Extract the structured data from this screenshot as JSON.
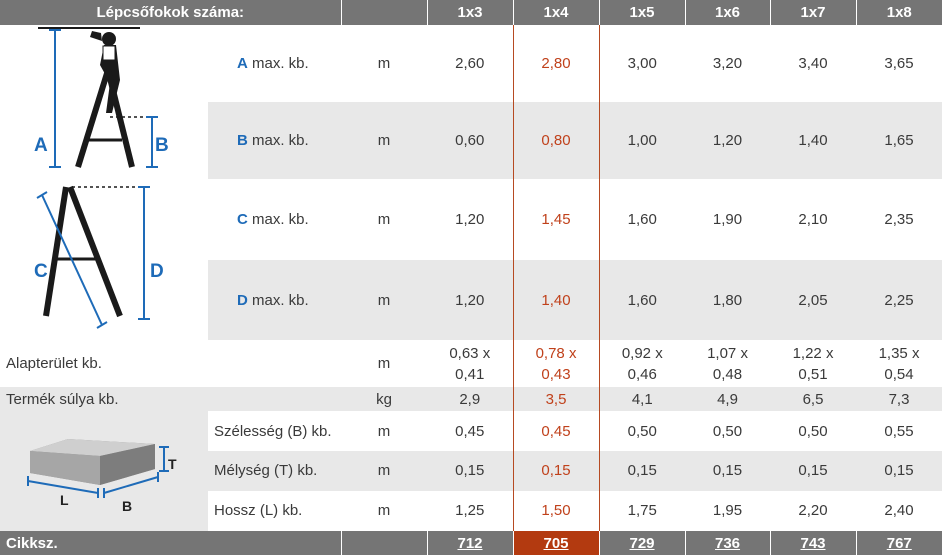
{
  "header": {
    "title": "Lépcsőfokok száma:",
    "columns": [
      "1x3",
      "1x4",
      "1x5",
      "1x6",
      "1x7",
      "1x8"
    ]
  },
  "rows": {
    "a": {
      "letter": "A",
      "label": " max. kb.",
      "unit": "m",
      "values": [
        "2,60",
        "2,80",
        "3,00",
        "3,20",
        "3,40",
        "3,65"
      ]
    },
    "b": {
      "letter": "B",
      "label": " max. kb.",
      "unit": "m",
      "values": [
        "0,60",
        "0,80",
        "1,00",
        "1,20",
        "1,40",
        "1,65"
      ]
    },
    "c": {
      "letter": "C",
      "label": " max. kb.",
      "unit": "m",
      "values": [
        "1,20",
        "1,45",
        "1,60",
        "1,90",
        "2,10",
        "2,35"
      ]
    },
    "d": {
      "letter": "D",
      "label": " max. kb.",
      "unit": "m",
      "values": [
        "1,20",
        "1,40",
        "1,60",
        "1,80",
        "2,05",
        "2,25"
      ]
    },
    "area": {
      "label": "Alapterület kb.",
      "unit": "m",
      "values": [
        [
          "0,63 x",
          "0,41"
        ],
        [
          "0,78 x",
          "0,43"
        ],
        [
          "0,92 x",
          "0,46"
        ],
        [
          "1,07 x",
          "0,48"
        ],
        [
          "1,22 x",
          "0,51"
        ],
        [
          "1,35 x",
          "0,54"
        ]
      ]
    },
    "weight": {
      "label": "Termék súlya kb.",
      "unit": "kg",
      "values": [
        "2,9",
        "3,5",
        "4,1",
        "4,9",
        "6,5",
        "7,3"
      ]
    },
    "width": {
      "label": "Szélesség (B) kb.",
      "unit": "m",
      "values": [
        "0,45",
        "0,45",
        "0,50",
        "0,50",
        "0,50",
        "0,55"
      ]
    },
    "depth": {
      "label": "Mélység (T) kb.",
      "unit": "m",
      "values": [
        "0,15",
        "0,15",
        "0,15",
        "0,15",
        "0,15",
        "0,15"
      ]
    },
    "length": {
      "label": "Hossz (L) kb.",
      "unit": "m",
      "values": [
        "1,25",
        "1,50",
        "1,75",
        "1,95",
        "2,20",
        "2,40"
      ]
    }
  },
  "footer": {
    "label": "Cikksz.",
    "codes": [
      "712",
      "705",
      "729",
      "736",
      "743",
      "767"
    ]
  },
  "diagram_labels": {
    "a": "A",
    "b": "B",
    "c": "C",
    "d": "D",
    "l": "L",
    "box_b": "B",
    "t": "T"
  },
  "colors": {
    "header_bg": "#757575",
    "highlight": "#c0411b",
    "highlight_code_bg": "#b33a10",
    "letter_blue": "#1e6bb8",
    "stripe": "#e8e8e8"
  }
}
